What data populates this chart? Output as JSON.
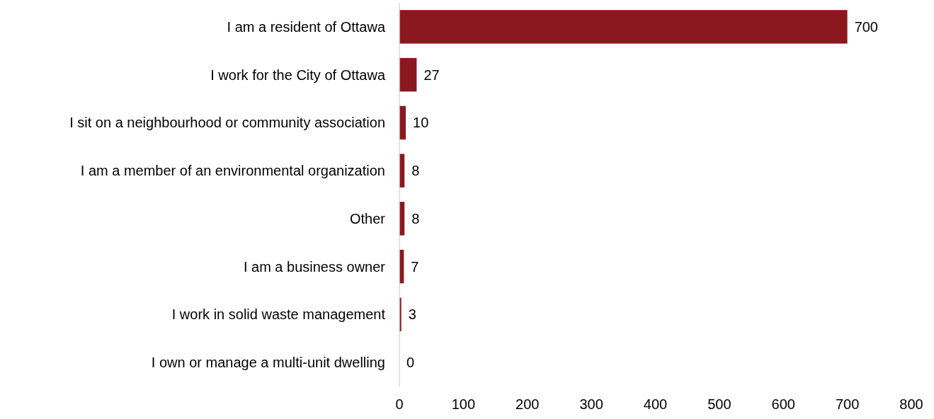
{
  "chart_data": {
    "type": "bar",
    "orientation": "horizontal",
    "categories": [
      "I am a resident of Ottawa",
      "I work for the City of Ottawa",
      "I sit on a neighbourhood or community association",
      "I am a member of an environmental organization",
      "Other",
      "I am a business owner",
      "I work in solid waste management",
      "I own or manage a multi-unit dwelling"
    ],
    "values": [
      700,
      27,
      10,
      8,
      8,
      7,
      3,
      0
    ],
    "color": "#8b181e",
    "xlim": [
      0,
      800
    ],
    "xticks": [
      0,
      100,
      200,
      300,
      400,
      500,
      600,
      700,
      800
    ],
    "data_labels": true
  }
}
